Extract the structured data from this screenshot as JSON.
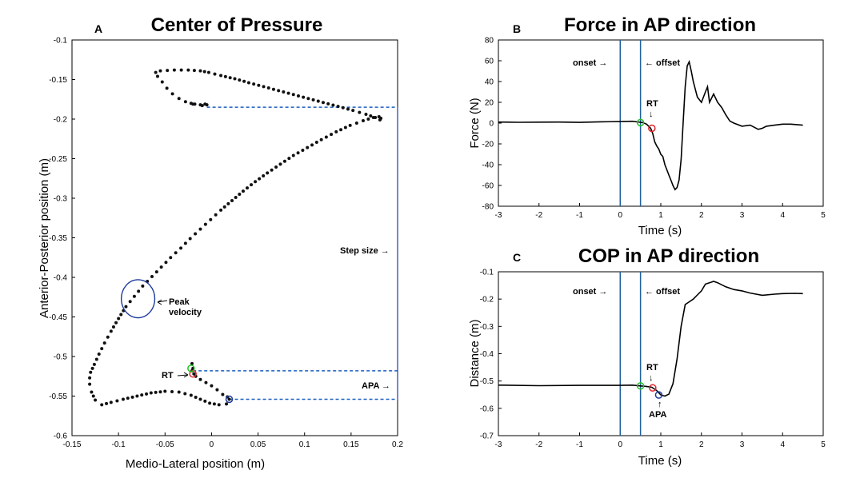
{
  "chart_data": [
    {
      "panel": "A",
      "type": "scatter",
      "title": "Center of Pressure",
      "xlabel": "Medio-Lateral position (m)",
      "ylabel": "Anterior-Posterior position (m)",
      "xlim": [
        -0.15,
        0.2
      ],
      "ylim": [
        -0.6,
        -0.1
      ],
      "xticks": [
        "-0.15",
        "-0.1",
        "-0.05",
        "0",
        "0.05",
        "0.1",
        "0.15",
        "0.2"
      ],
      "yticks": [
        "-0.1",
        "-0.15",
        "-0.2",
        "-0.25",
        "-0.3",
        "-0.35",
        "-0.4",
        "-0.45",
        "-0.5",
        "-0.55",
        "-0.6"
      ],
      "path": [
        [
          -0.021,
          -0.509
        ],
        [
          -0.02,
          -0.515
        ],
        [
          -0.021,
          -0.518
        ],
        [
          -0.019,
          -0.522
        ],
        [
          -0.017,
          -0.525
        ],
        [
          -0.012,
          -0.529
        ],
        [
          -0.006,
          -0.533
        ],
        [
          0.0,
          -0.537
        ],
        [
          0.006,
          -0.542
        ],
        [
          0.012,
          -0.548
        ],
        [
          0.017,
          -0.551
        ],
        [
          0.019,
          -0.554
        ],
        [
          0.016,
          -0.56
        ],
        [
          0.008,
          -0.561
        ],
        [
          -0.002,
          -0.559
        ],
        [
          -0.012,
          -0.554
        ],
        [
          -0.022,
          -0.549
        ],
        [
          -0.035,
          -0.545
        ],
        [
          -0.05,
          -0.544
        ],
        [
          -0.065,
          -0.546
        ],
        [
          -0.08,
          -0.55
        ],
        [
          -0.095,
          -0.554
        ],
        [
          -0.108,
          -0.558
        ],
        [
          -0.118,
          -0.561
        ],
        [
          -0.125,
          -0.555
        ],
        [
          -0.129,
          -0.545
        ],
        [
          -0.131,
          -0.535
        ],
        [
          -0.131,
          -0.527
        ],
        [
          -0.13,
          -0.52
        ],
        [
          -0.126,
          -0.51
        ],
        [
          -0.121,
          -0.497
        ],
        [
          -0.115,
          -0.483
        ],
        [
          -0.108,
          -0.468
        ],
        [
          -0.1,
          -0.452
        ],
        [
          -0.092,
          -0.437
        ],
        [
          -0.083,
          -0.424
        ],
        [
          -0.074,
          -0.411
        ],
        [
          -0.064,
          -0.399
        ],
        [
          -0.054,
          -0.387
        ],
        [
          -0.044,
          -0.375
        ],
        [
          -0.033,
          -0.363
        ],
        [
          -0.023,
          -0.351
        ],
        [
          -0.012,
          -0.339
        ],
        [
          -0.001,
          -0.327
        ],
        [
          0.01,
          -0.315
        ],
        [
          0.022,
          -0.303
        ],
        [
          0.034,
          -0.291
        ],
        [
          0.047,
          -0.279
        ],
        [
          0.06,
          -0.268
        ],
        [
          0.074,
          -0.257
        ],
        [
          0.088,
          -0.246
        ],
        [
          0.103,
          -0.236
        ],
        [
          0.118,
          -0.226
        ],
        [
          0.134,
          -0.216
        ],
        [
          0.149,
          -0.208
        ],
        [
          0.163,
          -0.202
        ],
        [
          0.174,
          -0.198
        ],
        [
          0.18,
          -0.197
        ],
        [
          0.182,
          -0.199
        ],
        [
          0.181,
          -0.201
        ],
        [
          0.176,
          -0.198
        ],
        [
          0.166,
          -0.194
        ],
        [
          0.152,
          -0.189
        ],
        [
          0.136,
          -0.184
        ],
        [
          0.12,
          -0.179
        ],
        [
          0.104,
          -0.174
        ],
        [
          0.088,
          -0.169
        ],
        [
          0.072,
          -0.164
        ],
        [
          0.056,
          -0.159
        ],
        [
          0.04,
          -0.154
        ],
        [
          0.025,
          -0.149
        ],
        [
          0.01,
          -0.145
        ],
        [
          -0.003,
          -0.141
        ],
        [
          -0.012,
          -0.139
        ],
        [
          -0.025,
          -0.138
        ],
        [
          -0.04,
          -0.138
        ],
        [
          -0.055,
          -0.139
        ],
        [
          -0.06,
          -0.141
        ],
        [
          -0.058,
          -0.146
        ],
        [
          -0.053,
          -0.153
        ],
        [
          -0.048,
          -0.161
        ],
        [
          -0.042,
          -0.168
        ],
        [
          -0.035,
          -0.174
        ],
        [
          -0.028,
          -0.178
        ],
        [
          -0.02,
          -0.181
        ],
        [
          -0.012,
          -0.182
        ],
        [
          -0.007,
          -0.181
        ],
        [
          -0.005,
          -0.182
        ],
        [
          -0.01,
          -0.183
        ],
        [
          -0.018,
          -0.181
        ],
        [
          -0.022,
          -0.18
        ]
      ],
      "markers": [
        {
          "name": "RT",
          "x": -0.02,
          "y": -0.522,
          "color": "#e3242b"
        },
        {
          "name": "start",
          "x": -0.022,
          "y": -0.515,
          "color": "#22c222"
        },
        {
          "name": "APA",
          "x": 0.019,
          "y": -0.554,
          "color": "#1e3a9e"
        }
      ],
      "peak_velocity_circle": {
        "x": -0.079,
        "y": -0.427,
        "rx": 0.018,
        "ry": 0.024,
        "color": "#1e3a9e"
      },
      "dashed_levels": [
        {
          "y": -0.185,
          "from_x": -0.005,
          "to_x": 0.2
        },
        {
          "y": -0.518,
          "from_x": -0.02,
          "to_x": 0.2
        },
        {
          "y": -0.554,
          "from_x": 0.019,
          "to_x": 0.2
        }
      ],
      "annotations": {
        "step_size": "Step size →",
        "apa": "APA →",
        "rt": "RT",
        "peak_velocity_line1": "Peak",
        "peak_velocity_line2": "velocity"
      }
    },
    {
      "panel": "B",
      "type": "line",
      "title": "Force in AP direction",
      "xlabel": "Time (s)",
      "ylabel": "Force (N)",
      "xlim": [
        -3,
        5
      ],
      "ylim": [
        -80,
        80
      ],
      "xticks": [
        "-3",
        "-2",
        "-1",
        "0",
        "1",
        "2",
        "3",
        "4",
        "5"
      ],
      "yticks": [
        "80",
        "60",
        "40",
        "20",
        "0",
        "-20",
        "-40",
        "-60",
        "-80"
      ],
      "x": [
        -3,
        -2.5,
        -2,
        -1.5,
        -1,
        -0.5,
        0,
        0.3,
        0.5,
        0.55,
        0.65,
        0.75,
        0.8,
        0.85,
        0.9,
        0.95,
        1.0,
        1.05,
        1.1,
        1.15,
        1.2,
        1.25,
        1.3,
        1.35,
        1.4,
        1.45,
        1.5,
        1.55,
        1.6,
        1.65,
        1.7,
        1.75,
        1.8,
        1.9,
        2.0,
        2.1,
        2.15,
        2.2,
        2.3,
        2.4,
        2.5,
        2.6,
        2.7,
        2.8,
        3.0,
        3.2,
        3.4,
        3.5,
        3.6,
        3.8,
        4.0,
        4.2,
        4.5
      ],
      "y": [
        1,
        0.8,
        0.9,
        1,
        0.7,
        1.2,
        1.5,
        1.8,
        0.8,
        0.5,
        -1,
        -5,
        -10,
        -18,
        -22,
        -25,
        -30,
        -32,
        -40,
        -45,
        -50,
        -55,
        -60,
        -64,
        -62,
        -55,
        -35,
        0,
        35,
        55,
        59,
        50,
        40,
        25,
        20,
        30,
        35,
        20,
        28,
        20,
        15,
        8,
        2,
        0,
        -3,
        -2,
        -6,
        -5,
        -3,
        -2,
        -1,
        -1,
        -2
      ],
      "vlines": [
        0,
        0.5
      ],
      "markers": [
        {
          "name": "start",
          "x": 0.5,
          "y": 0.5,
          "color": "#22c222"
        },
        {
          "name": "RT",
          "x": 0.78,
          "y": -5,
          "color": "#e3242b"
        }
      ],
      "annotations": {
        "onset": "onset →",
        "offset": "← offset",
        "rt": "RT",
        "rt_arrow": "↓"
      }
    },
    {
      "panel": "C",
      "type": "line",
      "title": "COP in AP direction",
      "xlabel": "Time (s)",
      "ylabel": "Distance (m)",
      "xlim": [
        -3,
        5
      ],
      "ylim": [
        -0.7,
        -0.1
      ],
      "xticks": [
        "-3",
        "-2",
        "-1",
        "0",
        "1",
        "2",
        "3",
        "4",
        "5"
      ],
      "yticks": [
        "-0.1",
        "-0.2",
        "-0.3",
        "-0.4",
        "-0.5",
        "-0.6",
        "-0.7"
      ],
      "x": [
        -3,
        -2,
        -1,
        0,
        0.3,
        0.5,
        0.6,
        0.7,
        0.78,
        0.9,
        1.0,
        1.1,
        1.2,
        1.3,
        1.4,
        1.5,
        1.6,
        1.7,
        1.8,
        1.9,
        2.0,
        2.1,
        2.2,
        2.3,
        2.4,
        2.6,
        2.8,
        3.0,
        3.2,
        3.5,
        3.8,
        4.0,
        4.3,
        4.5
      ],
      "y": [
        -0.515,
        -0.517,
        -0.516,
        -0.516,
        -0.515,
        -0.518,
        -0.519,
        -0.521,
        -0.523,
        -0.535,
        -0.551,
        -0.555,
        -0.548,
        -0.51,
        -0.42,
        -0.3,
        -0.22,
        -0.21,
        -0.2,
        -0.185,
        -0.17,
        -0.145,
        -0.14,
        -0.135,
        -0.14,
        -0.155,
        -0.165,
        -0.17,
        -0.178,
        -0.186,
        -0.182,
        -0.18,
        -0.179,
        -0.18
      ],
      "vlines": [
        0,
        0.5
      ],
      "markers": [
        {
          "name": "start",
          "x": 0.5,
          "y": -0.518,
          "color": "#22c222"
        },
        {
          "name": "RT",
          "x": 0.8,
          "y": -0.525,
          "color": "#e3242b"
        },
        {
          "name": "APA",
          "x": 0.95,
          "y": -0.551,
          "color": "#1e3a9e"
        }
      ],
      "annotations": {
        "onset": "onset →",
        "offset": "← offset",
        "rt": "RT",
        "rt_arrow": "↓",
        "apa": "APA",
        "apa_arrow": "↑"
      }
    }
  ],
  "colors": {
    "line": "#000000",
    "vline": "#1f5f9e",
    "dashed": "#1a5fc2",
    "step_line": "#1e3aa8"
  }
}
